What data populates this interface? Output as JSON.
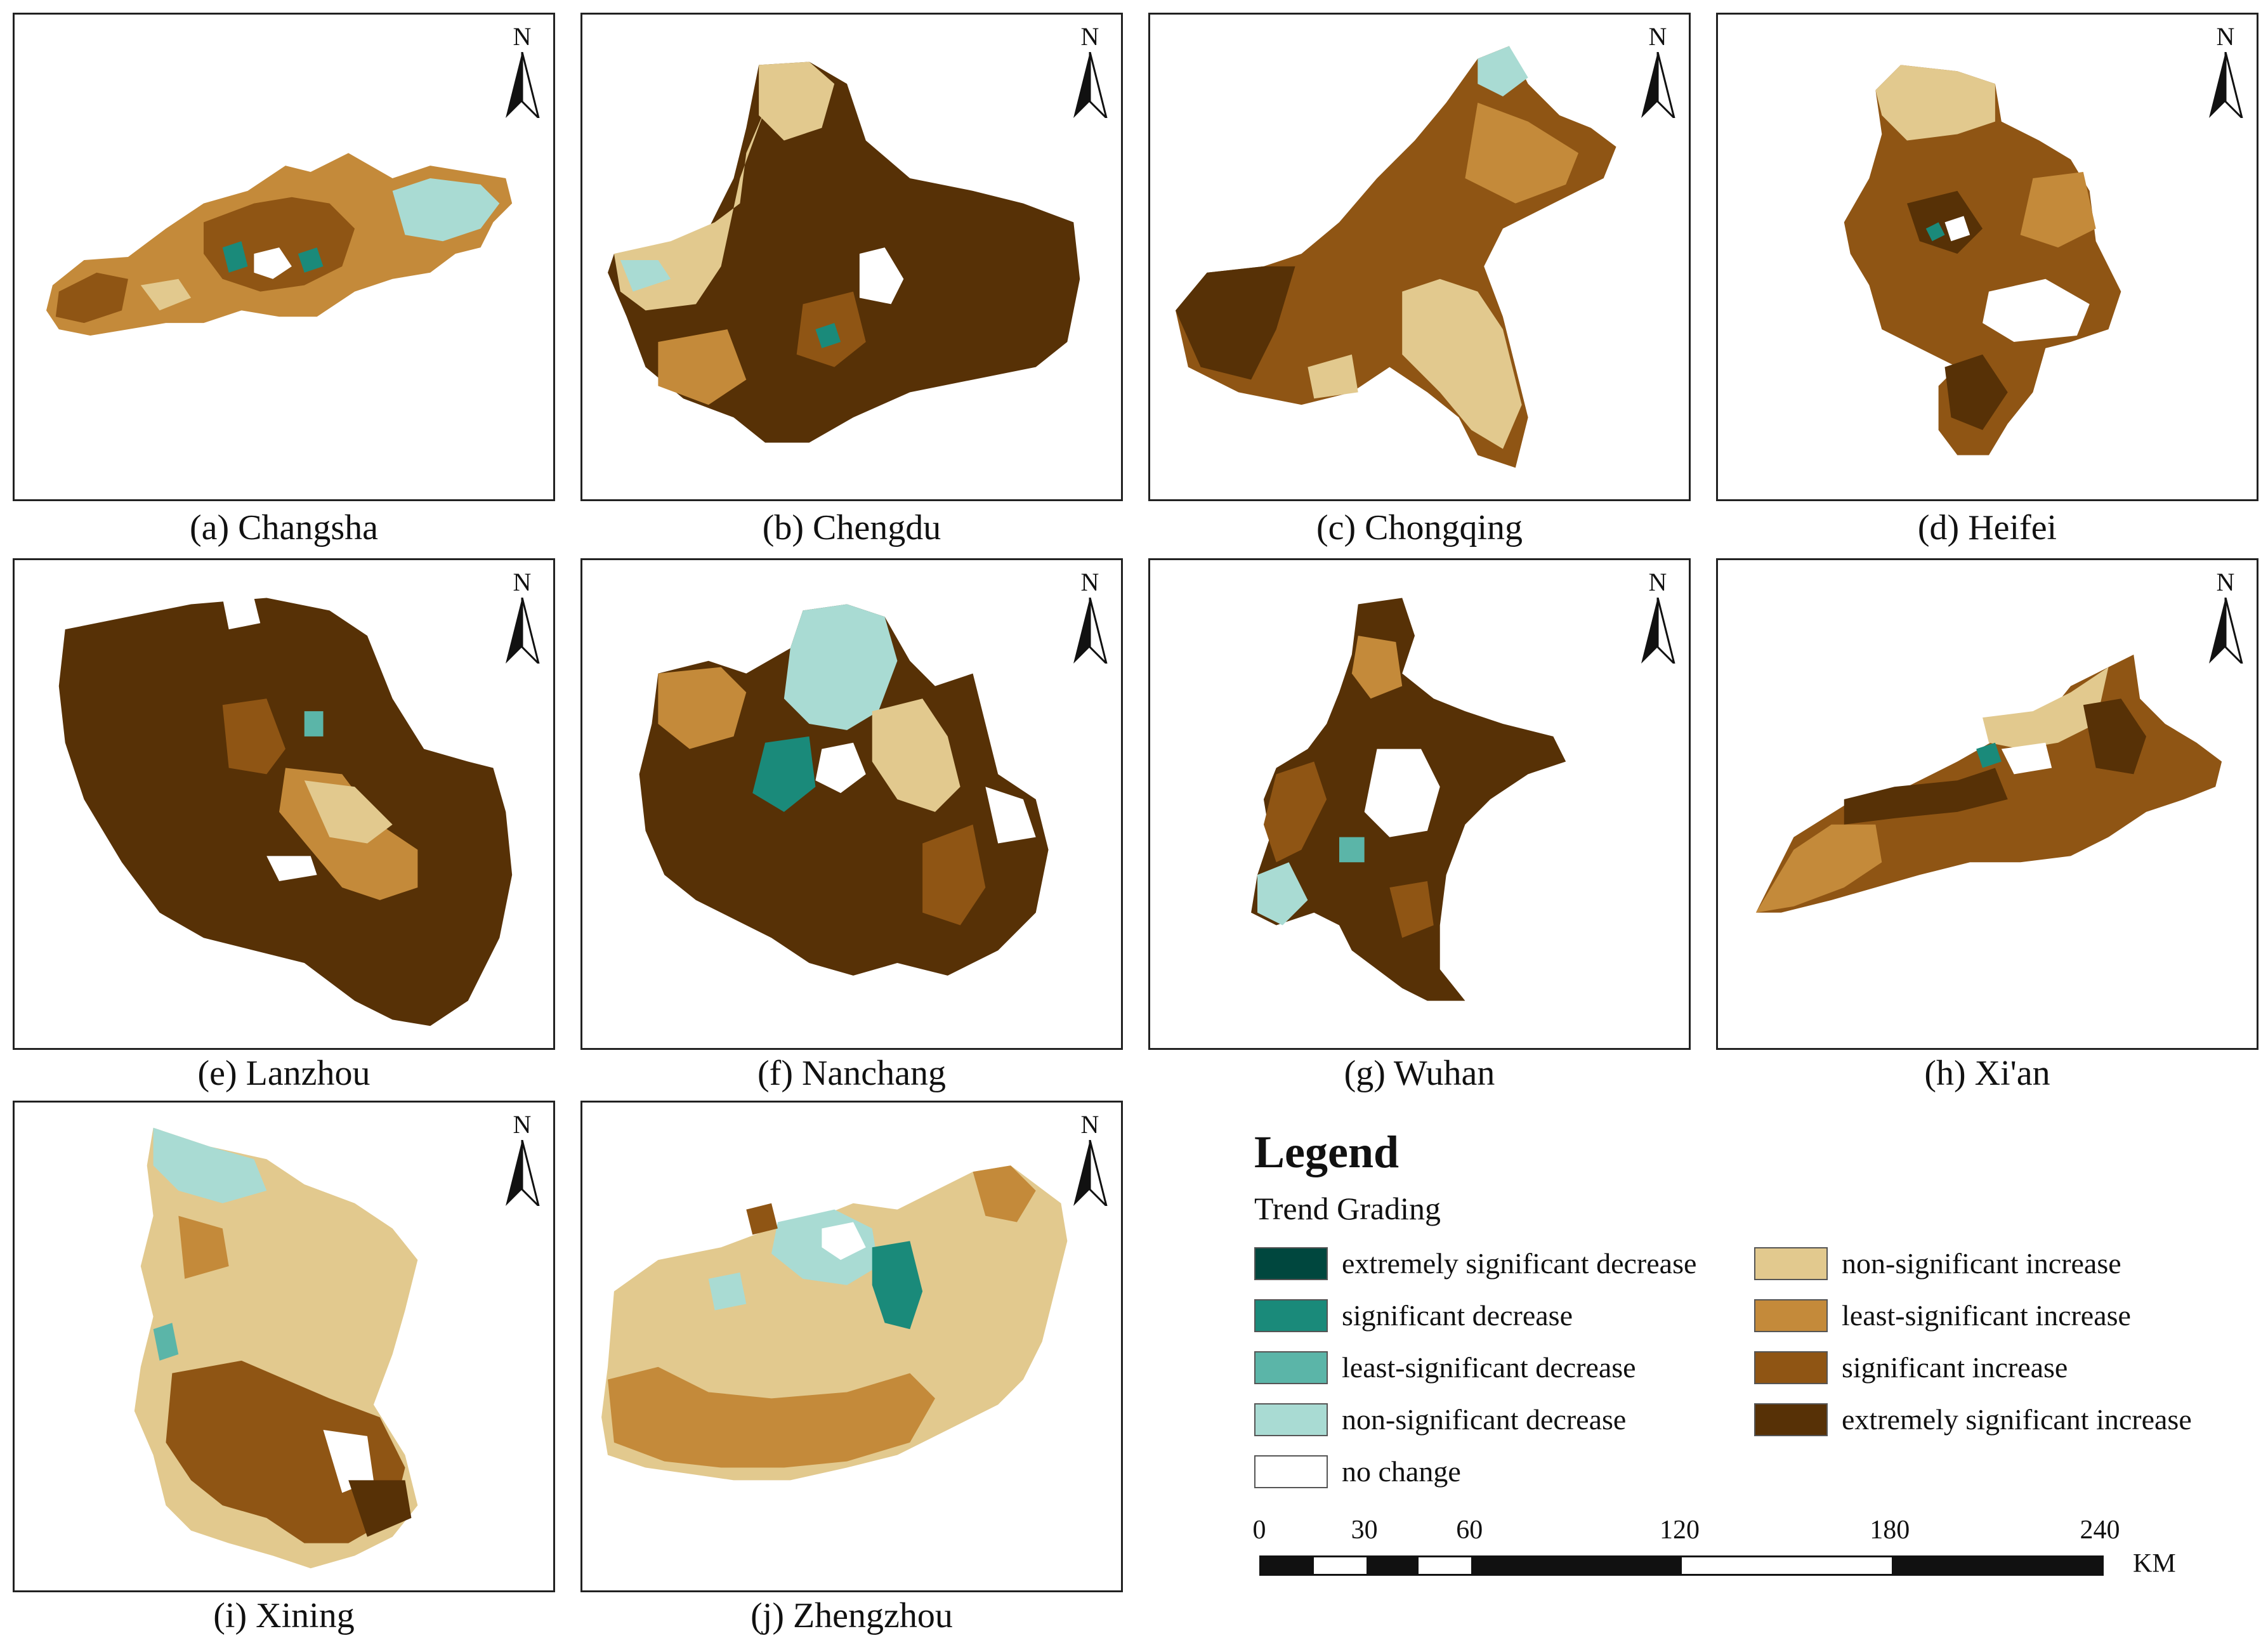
{
  "panels": [
    {
      "caption": "(a) Changsha",
      "north": "N",
      "shape": "changsha"
    },
    {
      "caption": "(b) Chengdu",
      "north": "N",
      "shape": "chengdu"
    },
    {
      "caption": "(c) Chongqing",
      "north": "N",
      "shape": "chongqing"
    },
    {
      "caption": "(d) Heifei",
      "north": "N",
      "shape": "heifei"
    },
    {
      "caption": "(e) Lanzhou",
      "north": "N",
      "shape": "lanzhou"
    },
    {
      "caption": "(f) Nanchang",
      "north": "N",
      "shape": "nanchang"
    },
    {
      "caption": "(g) Wuhan",
      "north": "N",
      "shape": "wuhan"
    },
    {
      "caption": "(h) Xi'an",
      "north": "N",
      "shape": "xian"
    },
    {
      "caption": "(i) Xining",
      "north": "N",
      "shape": "xining"
    },
    {
      "caption": "(j) Zhengzhou",
      "north": "N",
      "shape": "zhengzhou"
    }
  ],
  "legend": {
    "title": "Legend",
    "subtitle": "Trend Grading",
    "items": [
      {
        "label": "extremely significant decrease",
        "color": "#00473e"
      },
      {
        "label": "significant decrease",
        "color": "#1a8a7a"
      },
      {
        "label": "least-significant decrease",
        "color": "#5bb5a8"
      },
      {
        "label": "non-significant decrease",
        "color": "#a9dbd3"
      },
      {
        "label": "no change",
        "color": "#ffffff"
      },
      {
        "label": "non-significant increase",
        "color": "#e2c98e"
      },
      {
        "label": "least-significant increase",
        "color": "#c48a3a"
      },
      {
        "label": "significant increase",
        "color": "#8f5514"
      },
      {
        "label": "extremely significant increase",
        "color": "#573106"
      }
    ]
  },
  "scale_bar": {
    "ticks": [
      "0",
      "30",
      "60",
      "120",
      "180",
      "240"
    ],
    "tick_values": [
      0,
      30,
      60,
      120,
      180,
      240
    ],
    "unit": "KM"
  }
}
